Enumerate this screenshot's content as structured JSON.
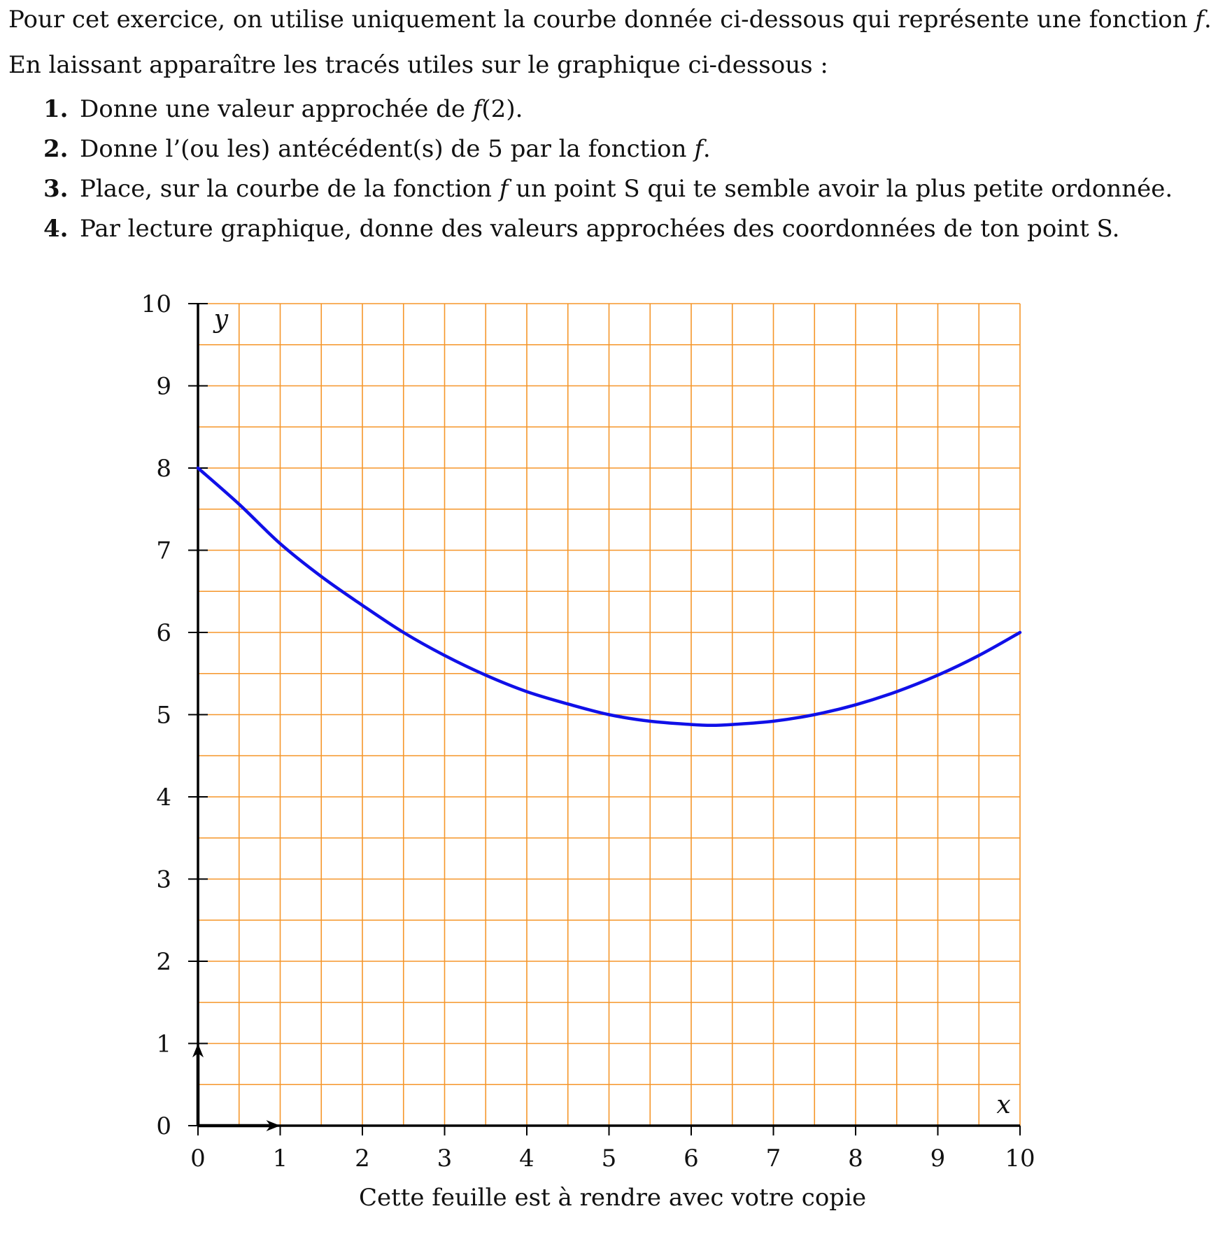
{
  "exercise": {
    "intro_line1_a": "Pour cet exercice, on utilise uniquement la courbe donnée ci-dessous qui représente une fonction ",
    "intro_line1_f": "f",
    "intro_line1_end": ".",
    "intro_line2": "En laissant apparaître les tracés utiles sur le graphique ci-dessous :",
    "questions": [
      {
        "num": "1.",
        "text_a": "Donne une valeur approchée de ",
        "f": "f",
        "text_b": "(2)."
      },
      {
        "num": "2.",
        "text_a": "Donne l’(ou les) antécédent(s) de 5 par la fonction ",
        "f": "f",
        "text_b": "."
      },
      {
        "num": "3.",
        "text_a": "Place, sur la courbe de la fonction ",
        "f": "f",
        "text_b": " un point S qui te semble avoir la plus petite ordonnée."
      },
      {
        "num": "4.",
        "text_a": "Par lecture graphique, donne des valeurs approchées des coordonnées de ton point S.",
        "f": "",
        "text_b": ""
      }
    ]
  },
  "chart_data": {
    "type": "line",
    "xlabel": "x",
    "ylabel": "y",
    "xlim": [
      0,
      10
    ],
    "ylim": [
      0,
      10
    ],
    "x_ticks": [
      "0",
      "1",
      "2",
      "3",
      "4",
      "5",
      "6",
      "7",
      "8",
      "9",
      "10"
    ],
    "y_ticks": [
      "0",
      "1",
      "2",
      "3",
      "4",
      "5",
      "6",
      "7",
      "8",
      "9",
      "10"
    ],
    "grid": true,
    "grid_minor_step": 0.5,
    "colors": {
      "grid": "#f5962a",
      "curve": "#1010e8",
      "axis": "#000000"
    },
    "series": [
      {
        "x": [
          0,
          0.5,
          1,
          1.5,
          2,
          2.5,
          3,
          3.5,
          4,
          4.5,
          5,
          5.5,
          6,
          6.25,
          6.5,
          7,
          7.5,
          8,
          8.5,
          9,
          9.5,
          10
        ],
        "y": [
          8,
          7.56,
          7.08,
          6.68,
          6.33,
          6.0,
          5.72,
          5.48,
          5.28,
          5.13,
          5.0,
          4.92,
          4.88,
          4.87,
          4.88,
          4.92,
          5.0,
          5.12,
          5.28,
          5.48,
          5.72,
          6.0
        ]
      }
    ]
  },
  "footer": "Cette feuille est à rendre avec votre copie"
}
